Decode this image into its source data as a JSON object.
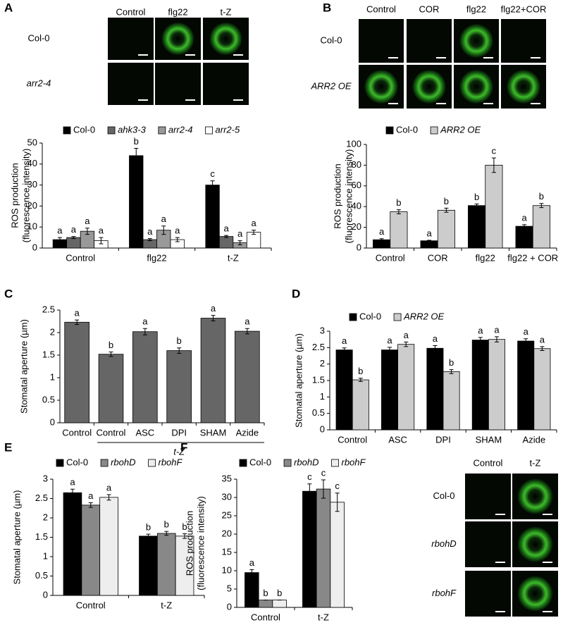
{
  "panel_labels": [
    "A",
    "B",
    "C",
    "D",
    "E",
    "F"
  ],
  "image_panels": [
    {
      "columns": [
        "Control",
        "flg22",
        "t-Z"
      ],
      "rows": [
        "Col-0",
        "arr2-4"
      ]
    },
    {
      "columns": [
        "Control",
        "COR",
        "flg22",
        "flg22+COR"
      ],
      "rows": [
        "Col-0",
        "ARR2 OE"
      ]
    },
    {
      "columns": [
        "Control",
        "t-Z"
      ],
      "rows": [
        "Col-0",
        "rbohD",
        "rbohF"
      ]
    }
  ],
  "chart_data": [
    {
      "type": "bar",
      "ylabel": [
        "ROS production",
        "(fluorescence intensity)"
      ],
      "categories": [
        "Control",
        "flg22",
        "t-Z"
      ],
      "ylim": [
        0,
        50
      ],
      "yticks": [
        0,
        10,
        20,
        30,
        40,
        50
      ],
      "series": [
        {
          "name": "Col-0",
          "color": "#000000",
          "values": [
            4,
            44,
            30
          ],
          "errors": [
            1,
            3.5,
            2
          ],
          "letters": [
            "a",
            "b",
            "c"
          ]
        },
        {
          "name": "ahk3-3",
          "color": "#666666",
          "values": [
            5,
            4,
            5.5
          ],
          "errors": [
            0.5,
            0.5,
            0.5
          ],
          "letters": [
            "a",
            "a",
            "a"
          ]
        },
        {
          "name": "arr2-4",
          "color": "#999999",
          "values": [
            8,
            8.5,
            2.5
          ],
          "errors": [
            1.5,
            2,
            1
          ],
          "letters": [
            "a",
            "a",
            "a"
          ]
        },
        {
          "name": "arr2-5",
          "color": "#ffffff",
          "values": [
            3.5,
            4,
            7.5
          ],
          "errors": [
            1.5,
            1,
            1
          ],
          "letters": [
            "a",
            "a",
            "a"
          ]
        }
      ]
    },
    {
      "type": "bar",
      "ylabel": [
        "ROS production",
        "(fluorescence intensity)"
      ],
      "categories": [
        "Control",
        "COR",
        "flg22",
        "flg22 + COR"
      ],
      "ylim": [
        0,
        100
      ],
      "yticks": [
        0,
        20,
        40,
        60,
        80,
        100
      ],
      "series": [
        {
          "name": "Col-0",
          "color": "#000000",
          "values": [
            8,
            7,
            41,
            21
          ],
          "errors": [
            1,
            0.5,
            1.5,
            1.5
          ],
          "letters": [
            "a",
            "a",
            "b",
            "a"
          ]
        },
        {
          "name": "ARR2 OE",
          "color": "#cccccc",
          "values": [
            35,
            36.5,
            80,
            41
          ],
          "errors": [
            2,
            2,
            7,
            2
          ],
          "letters": [
            "b",
            "b",
            "c",
            "b"
          ]
        }
      ]
    },
    {
      "type": "bar",
      "ylabel": "Stomatal aperture (µm)",
      "group_label": "t-Z",
      "categories": [
        "Control",
        "Control",
        "ASC",
        "DPI",
        "SHAM",
        "Azide"
      ],
      "ylim": [
        0,
        2.5
      ],
      "yticks": [
        0,
        0.5,
        1,
        1.5,
        2,
        2.5
      ],
      "color": "#666666",
      "values": [
        2.23,
        1.52,
        2.02,
        1.6,
        2.32,
        2.03
      ],
      "errors": [
        0.05,
        0.05,
        0.07,
        0.06,
        0.06,
        0.06
      ],
      "letters": [
        "a",
        "b",
        "a",
        "b",
        "a",
        "a"
      ]
    },
    {
      "type": "bar",
      "ylabel": "Stomatal aperture (µm)",
      "categories": [
        "Control",
        "ASC",
        "DPI",
        "SHAM",
        "Azide"
      ],
      "ylim": [
        0,
        3
      ],
      "yticks": [
        0,
        0.5,
        1,
        1.5,
        2,
        2.5,
        3
      ],
      "series": [
        {
          "name": "Col-0",
          "color": "#000000",
          "values": [
            2.43,
            2.43,
            2.48,
            2.73,
            2.7
          ],
          "errors": [
            0.06,
            0.08,
            0.08,
            0.08,
            0.07
          ],
          "letters": [
            "a",
            "a",
            "a",
            "a",
            "a"
          ]
        },
        {
          "name": "ARR2 OE",
          "color": "#cccccc",
          "values": [
            1.52,
            2.6,
            1.77,
            2.75,
            2.47
          ],
          "errors": [
            0.05,
            0.07,
            0.06,
            0.08,
            0.06
          ],
          "letters": [
            "b",
            "a",
            "b",
            "a",
            "a"
          ]
        }
      ]
    },
    {
      "type": "bar",
      "ylabel": "Stomatal aperture (µm)",
      "categories": [
        "Control",
        "t-Z"
      ],
      "ylim": [
        0,
        3
      ],
      "yticks": [
        0,
        0.5,
        1,
        1.5,
        2,
        2.5,
        3
      ],
      "series": [
        {
          "name": "Col-0",
          "color": "#000000",
          "values": [
            2.65,
            1.53
          ],
          "errors": [
            0.09,
            0.05
          ],
          "letters": [
            "a",
            "b"
          ]
        },
        {
          "name": "rbohD",
          "color": "#888888",
          "values": [
            2.33,
            1.6
          ],
          "errors": [
            0.06,
            0.05
          ],
          "letters": [
            "a",
            "b"
          ]
        },
        {
          "name": "rbohF",
          "color": "#eeeeee",
          "values": [
            2.53,
            1.53
          ],
          "errors": [
            0.07,
            0.06
          ],
          "letters": [
            "a",
            "b"
          ]
        }
      ]
    },
    {
      "type": "bar",
      "ylabel": [
        "ROS production",
        "(fluorescence intensity)"
      ],
      "categories": [
        "Control",
        "t-Z"
      ],
      "ylim": [
        0,
        35
      ],
      "yticks": [
        0,
        5,
        10,
        15,
        20,
        25,
        30,
        35
      ],
      "series": [
        {
          "name": "Col-0",
          "color": "#000000",
          "values": [
            9.5,
            31.7
          ],
          "errors": [
            0.8,
            2
          ],
          "letters": [
            "a",
            "c"
          ]
        },
        {
          "name": "rbohD",
          "color": "#888888",
          "values": [
            2,
            32.3
          ],
          "errors": [
            0,
            2.5
          ],
          "letters": [
            "b",
            "c"
          ]
        },
        {
          "name": "rbohF",
          "color": "#eeeeee",
          "values": [
            2,
            28.7
          ],
          "errors": [
            0,
            2.5
          ],
          "letters": [
            "b",
            "c"
          ]
        }
      ]
    }
  ]
}
